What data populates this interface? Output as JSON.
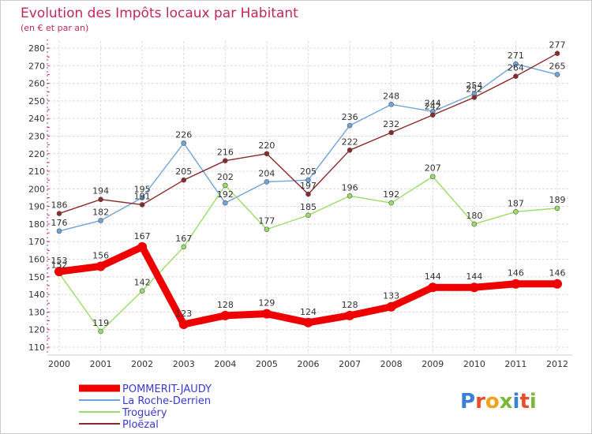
{
  "header": {
    "title": "Evolution des Impôts locaux par Habitant",
    "subtitle": "(en € et par an)"
  },
  "brand": {
    "logo_text": "Proxiti"
  },
  "chart_data": {
    "type": "line",
    "title": "Evolution des Impôts locaux par Habitant",
    "subtitle": "(en € et par an)",
    "xlabel": "",
    "ylabel": "",
    "x": [
      2000,
      2001,
      2002,
      2003,
      2004,
      2005,
      2006,
      2007,
      2008,
      2009,
      2010,
      2011,
      2012
    ],
    "ylim": [
      110,
      280
    ],
    "yticks": [
      110,
      120,
      130,
      140,
      150,
      160,
      170,
      180,
      190,
      200,
      210,
      220,
      230,
      240,
      250,
      260,
      270,
      280
    ],
    "grid": true,
    "legend_position": "bottom-left",
    "series": [
      {
        "name": "POMMERIT-JAUDY",
        "color": "#ee0000",
        "highlight": true,
        "values": [
          153,
          156,
          167,
          123,
          128,
          129,
          124,
          128,
          133,
          144,
          144,
          146,
          146
        ]
      },
      {
        "name": "La Roche-Derrien",
        "color": "#6fa3d9",
        "values": [
          176,
          182,
          195,
          226,
          192,
          204,
          205,
          236,
          248,
          244,
          254,
          271,
          265
        ]
      },
      {
        "name": "Troguéry",
        "color": "#99dd66",
        "values": [
          152,
          119,
          142,
          167,
          202,
          177,
          185,
          196,
          192,
          207,
          180,
          187,
          189
        ]
      },
      {
        "name": "Ploëzal",
        "color": "#8a2a2a",
        "values": [
          186,
          194,
          191,
          205,
          216,
          220,
          197,
          222,
          232,
          242,
          252,
          264,
          277
        ]
      }
    ]
  }
}
